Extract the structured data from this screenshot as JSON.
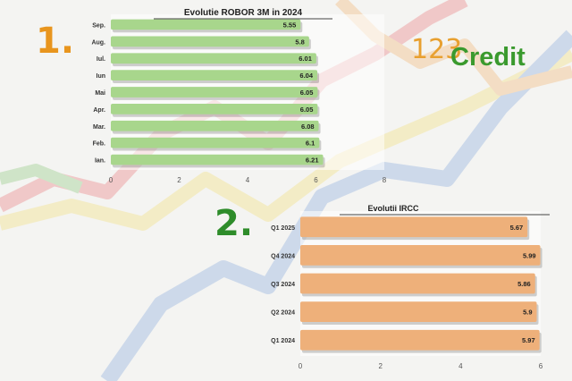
{
  "markers": {
    "one": "1.",
    "two": "2."
  },
  "logo": {
    "digits": "123",
    "word": "Credit"
  },
  "colors": {
    "chart1_bar": "#a8d68c",
    "chart2_bar": "#eeb07a",
    "marker1": "#e8951e",
    "marker2": "#2e8c2a",
    "logo_green": "#3a9a2e",
    "logo_orange": "#e8a030"
  },
  "chart_data": [
    {
      "type": "bar",
      "orientation": "horizontal",
      "title": "Evolutie ROBOR 3M in 2024",
      "categories": [
        "Sep.",
        "Aug.",
        "Iul.",
        "Iun",
        "Mai",
        "Apr.",
        "Mar.",
        "Feb.",
        "Ian."
      ],
      "values": [
        5.55,
        5.8,
        6.01,
        6.04,
        6.05,
        6.05,
        6.08,
        6.1,
        6.21
      ],
      "xticks": [
        0,
        2,
        4,
        6,
        8
      ],
      "xlim": [
        0,
        8
      ],
      "xlabel": "",
      "ylabel": "",
      "grid": false
    },
    {
      "type": "bar",
      "orientation": "horizontal",
      "title": "Evolutii IRCC",
      "categories": [
        "Q1 2025",
        "Q4 2024",
        "Q3 2024",
        "Q2 2024",
        "Q1 2024"
      ],
      "values": [
        5.67,
        5.99,
        5.86,
        5.9,
        5.97
      ],
      "xticks": [
        0,
        2,
        4,
        6
      ],
      "xlim": [
        0,
        6
      ],
      "xlabel": "",
      "ylabel": "",
      "grid": false
    }
  ]
}
